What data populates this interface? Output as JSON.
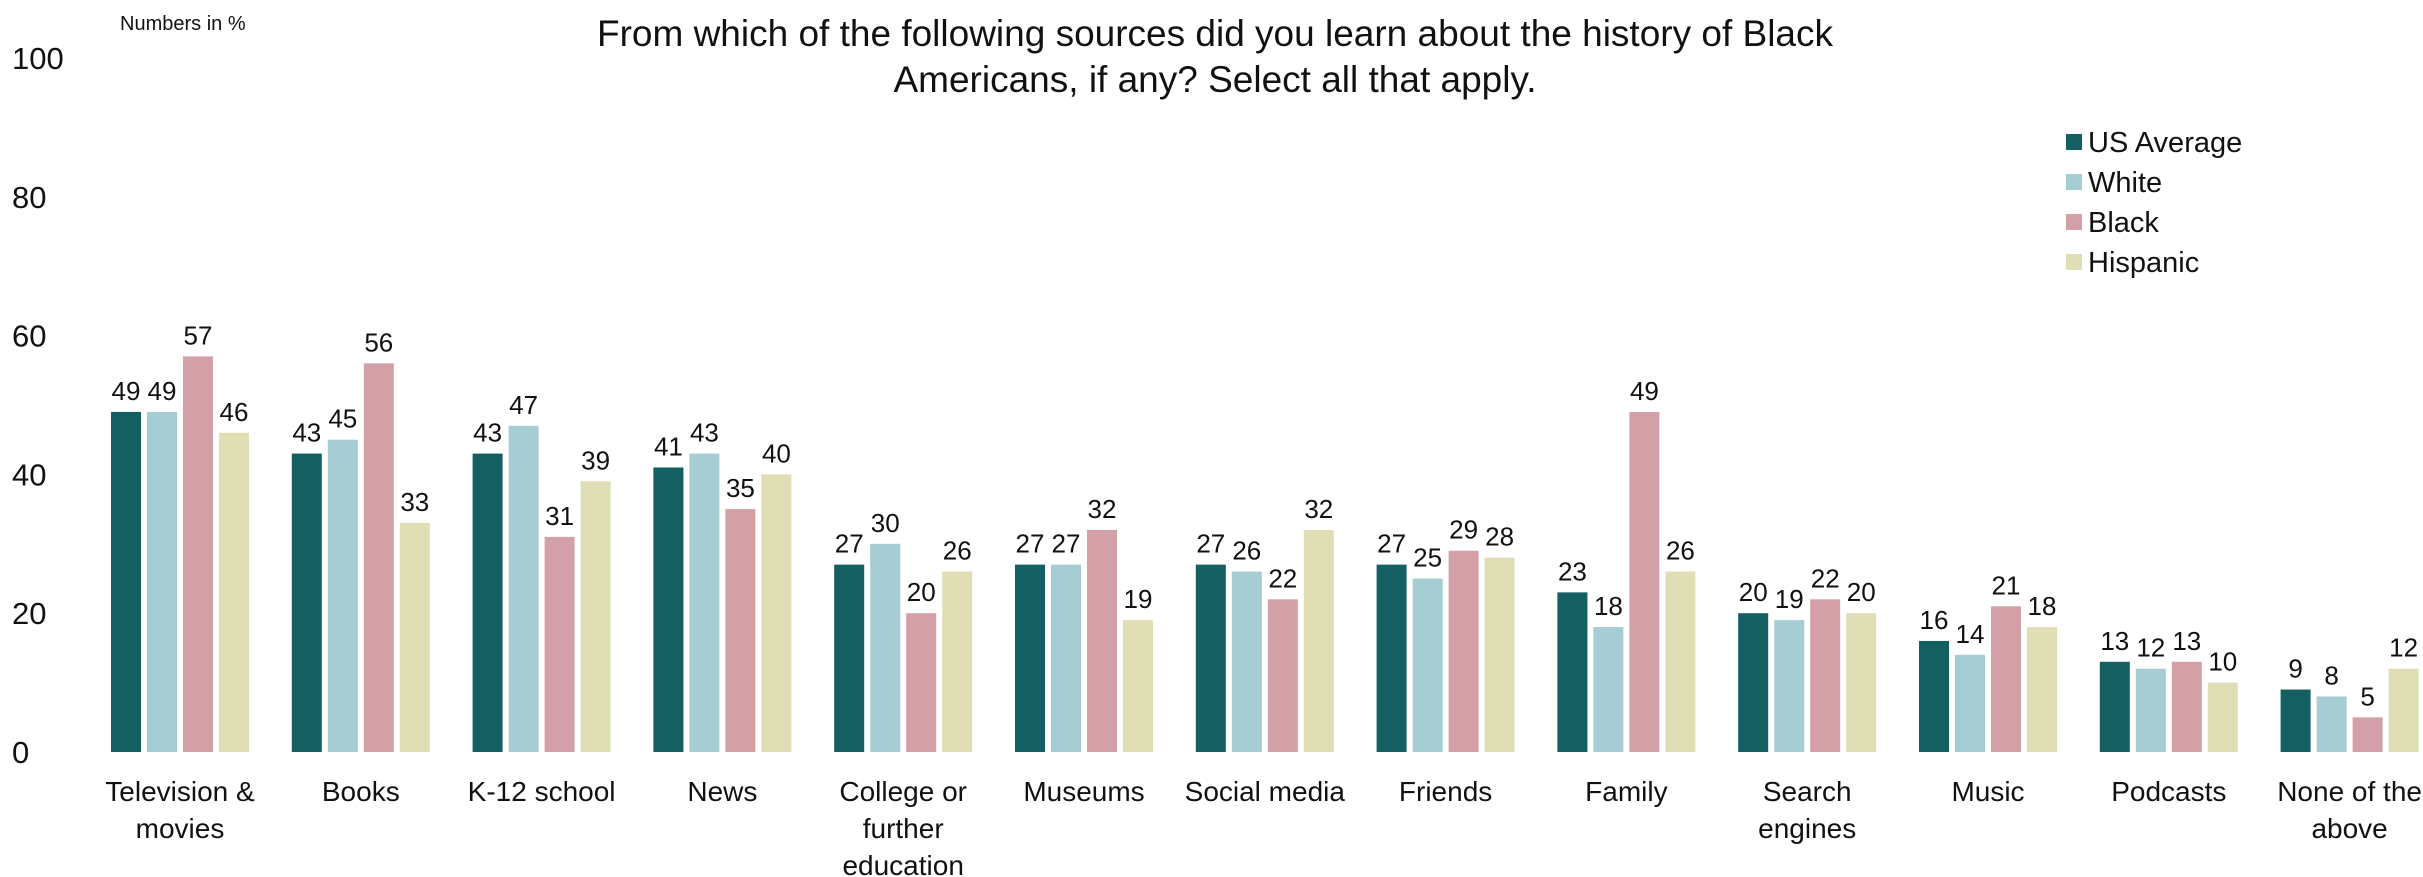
{
  "note": "Numbers in %",
  "title_lines": [
    "From which of the following sources did you learn about the history of Black",
    "Americans, if any? Select all that apply."
  ],
  "chart_data": {
    "type": "bar",
    "title": "From which of the following sources did you learn about the history of Black Americans, if any? Select all that apply.",
    "categories": [
      "Television & movies",
      "Books",
      "K-12 school",
      "News",
      "College or further education",
      "Museums",
      "Social media",
      "Friends",
      "Family",
      "Search engines",
      "Music",
      "Podcasts",
      "None of the above"
    ],
    "category_lines": [
      [
        "Television &",
        "movies"
      ],
      [
        "Books"
      ],
      [
        "K-12 school"
      ],
      [
        "News"
      ],
      [
        "College or",
        "further",
        "education"
      ],
      [
        "Museums"
      ],
      [
        "Social media"
      ],
      [
        "Friends"
      ],
      [
        "Family"
      ],
      [
        "Search",
        "engines"
      ],
      [
        "Music"
      ],
      [
        "Podcasts"
      ],
      [
        "None of the",
        "above"
      ]
    ],
    "series": [
      {
        "name": "US Average",
        "color": "#135f62",
        "values": [
          49,
          43,
          43,
          41,
          27,
          27,
          27,
          27,
          23,
          20,
          16,
          13,
          9
        ]
      },
      {
        "name": "White",
        "color": "#a6cdd3",
        "values": [
          49,
          45,
          47,
          43,
          30,
          27,
          26,
          25,
          18,
          19,
          14,
          12,
          8
        ]
      },
      {
        "name": "Black",
        "color": "#d4a0a8",
        "values": [
          57,
          56,
          31,
          35,
          20,
          32,
          22,
          29,
          49,
          22,
          21,
          13,
          5
        ]
      },
      {
        "name": "Hispanic",
        "color": "#e0deb4",
        "values": [
          46,
          33,
          39,
          40,
          26,
          19,
          32,
          28,
          26,
          20,
          18,
          10,
          12
        ]
      }
    ],
    "yticks": [
      0,
      20,
      40,
      60,
      80,
      100
    ],
    "ylim": [
      0,
      100
    ],
    "grid": false,
    "legend_position": "top-right"
  }
}
